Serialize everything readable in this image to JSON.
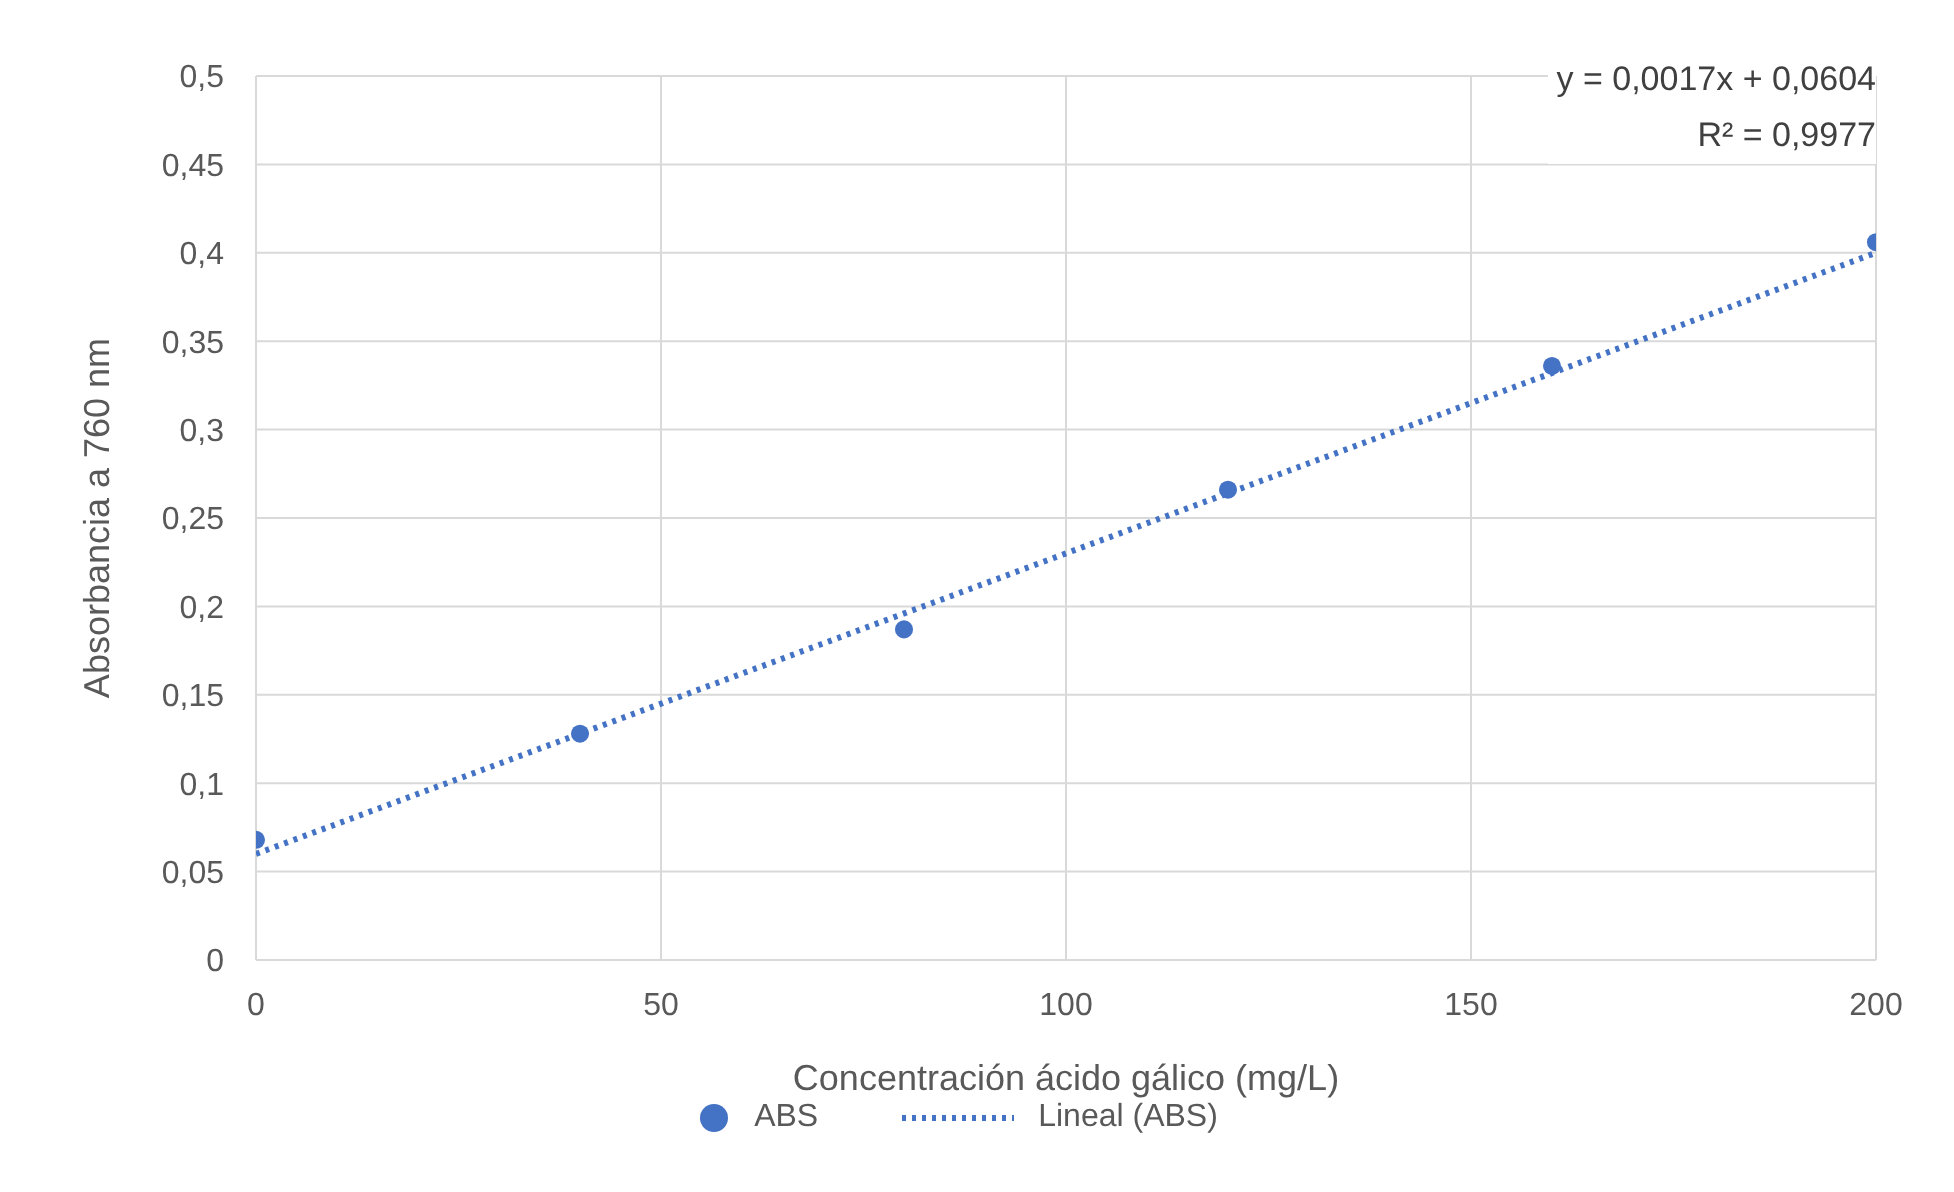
{
  "chart_data": {
    "type": "scatter",
    "xlabel": "Concentración ácido gálico (mg/L)",
    "ylabel": "Absorbancia a 760 nm",
    "annotations": [
      "y = 0,0017x + 0,0604",
      "R² = 0,9977"
    ],
    "xlim": [
      0,
      200
    ],
    "xticks": [
      0,
      50,
      100,
      150,
      200
    ],
    "ylim": [
      0,
      0.5
    ],
    "yticks": [
      {
        "value": 0,
        "label": "0"
      },
      {
        "value": 0.05,
        "label": "0,05"
      },
      {
        "value": 0.1,
        "label": "0,1"
      },
      {
        "value": 0.15,
        "label": "0,15"
      },
      {
        "value": 0.2,
        "label": "0,2"
      },
      {
        "value": 0.25,
        "label": "0,25"
      },
      {
        "value": 0.3,
        "label": "0,3"
      },
      {
        "value": 0.35,
        "label": "0,35"
      },
      {
        "value": 0.4,
        "label": "0,4"
      },
      {
        "value": 0.45,
        "label": "0,45"
      },
      {
        "value": 0.5,
        "label": "0,5"
      }
    ],
    "grid": true,
    "legend": "bottom",
    "series": [
      {
        "name": "ABS",
        "color": "#4472c4",
        "marker": "circle",
        "x": [
          0,
          40,
          80,
          120,
          160,
          200
        ],
        "values": [
          0.068,
          0.128,
          0.187,
          0.266,
          0.336,
          0.406
        ]
      },
      {
        "name": "Lineal (ABS)",
        "type": "line",
        "color": "#4472c4",
        "marker": "none",
        "line_style": "dotted",
        "x": [
          0,
          200
        ],
        "values": [
          0.06,
          0.4
        ]
      }
    ]
  }
}
